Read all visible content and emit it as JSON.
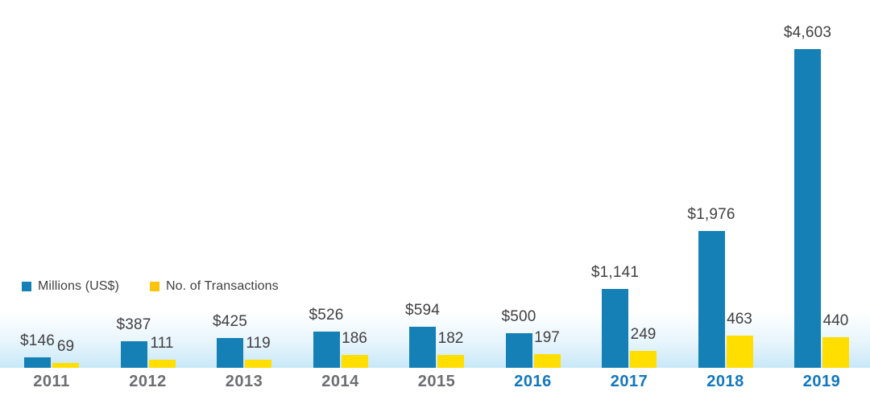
{
  "chart_data": {
    "type": "bar",
    "title": "",
    "categories": [
      "2011",
      "2012",
      "2013",
      "2014",
      "2015",
      "2016",
      "2017",
      "2018",
      "2019"
    ],
    "series": [
      {
        "name": "Millions (US$)",
        "values": [
          146,
          387,
          425,
          526,
          594,
          500,
          1141,
          1976,
          4603
        ],
        "data_labels": [
          "$146",
          "$387",
          "$425",
          "$526",
          "$594",
          "$500",
          "$1,141",
          "$1,976",
          "$4,603"
        ],
        "color": "#1580b5"
      },
      {
        "name": "No. of Transactions",
        "values": [
          69,
          111,
          119,
          186,
          182,
          197,
          249,
          463,
          440
        ],
        "data_labels": [
          "69",
          "111",
          "119",
          "186",
          "182",
          "197",
          "249",
          "463",
          "440"
        ],
        "color": "#ffde00"
      }
    ],
    "highlighted_categories": [
      "2016",
      "2017",
      "2018",
      "2019"
    ],
    "legend_position": "middle-left",
    "axes_visible": false,
    "gridlines": false,
    "ylim": [
      0,
      4603
    ]
  },
  "colors": {
    "bar_blue": "#1580b5",
    "bar_yellow": "#ffde00",
    "legend_blue": "#1580b5",
    "legend_yellow": "#fdc40e",
    "value_label": "#414042",
    "year_default": "#6d6e71",
    "year_highlight": "#1377bd",
    "baseline_glow": "#c8e8f8"
  }
}
